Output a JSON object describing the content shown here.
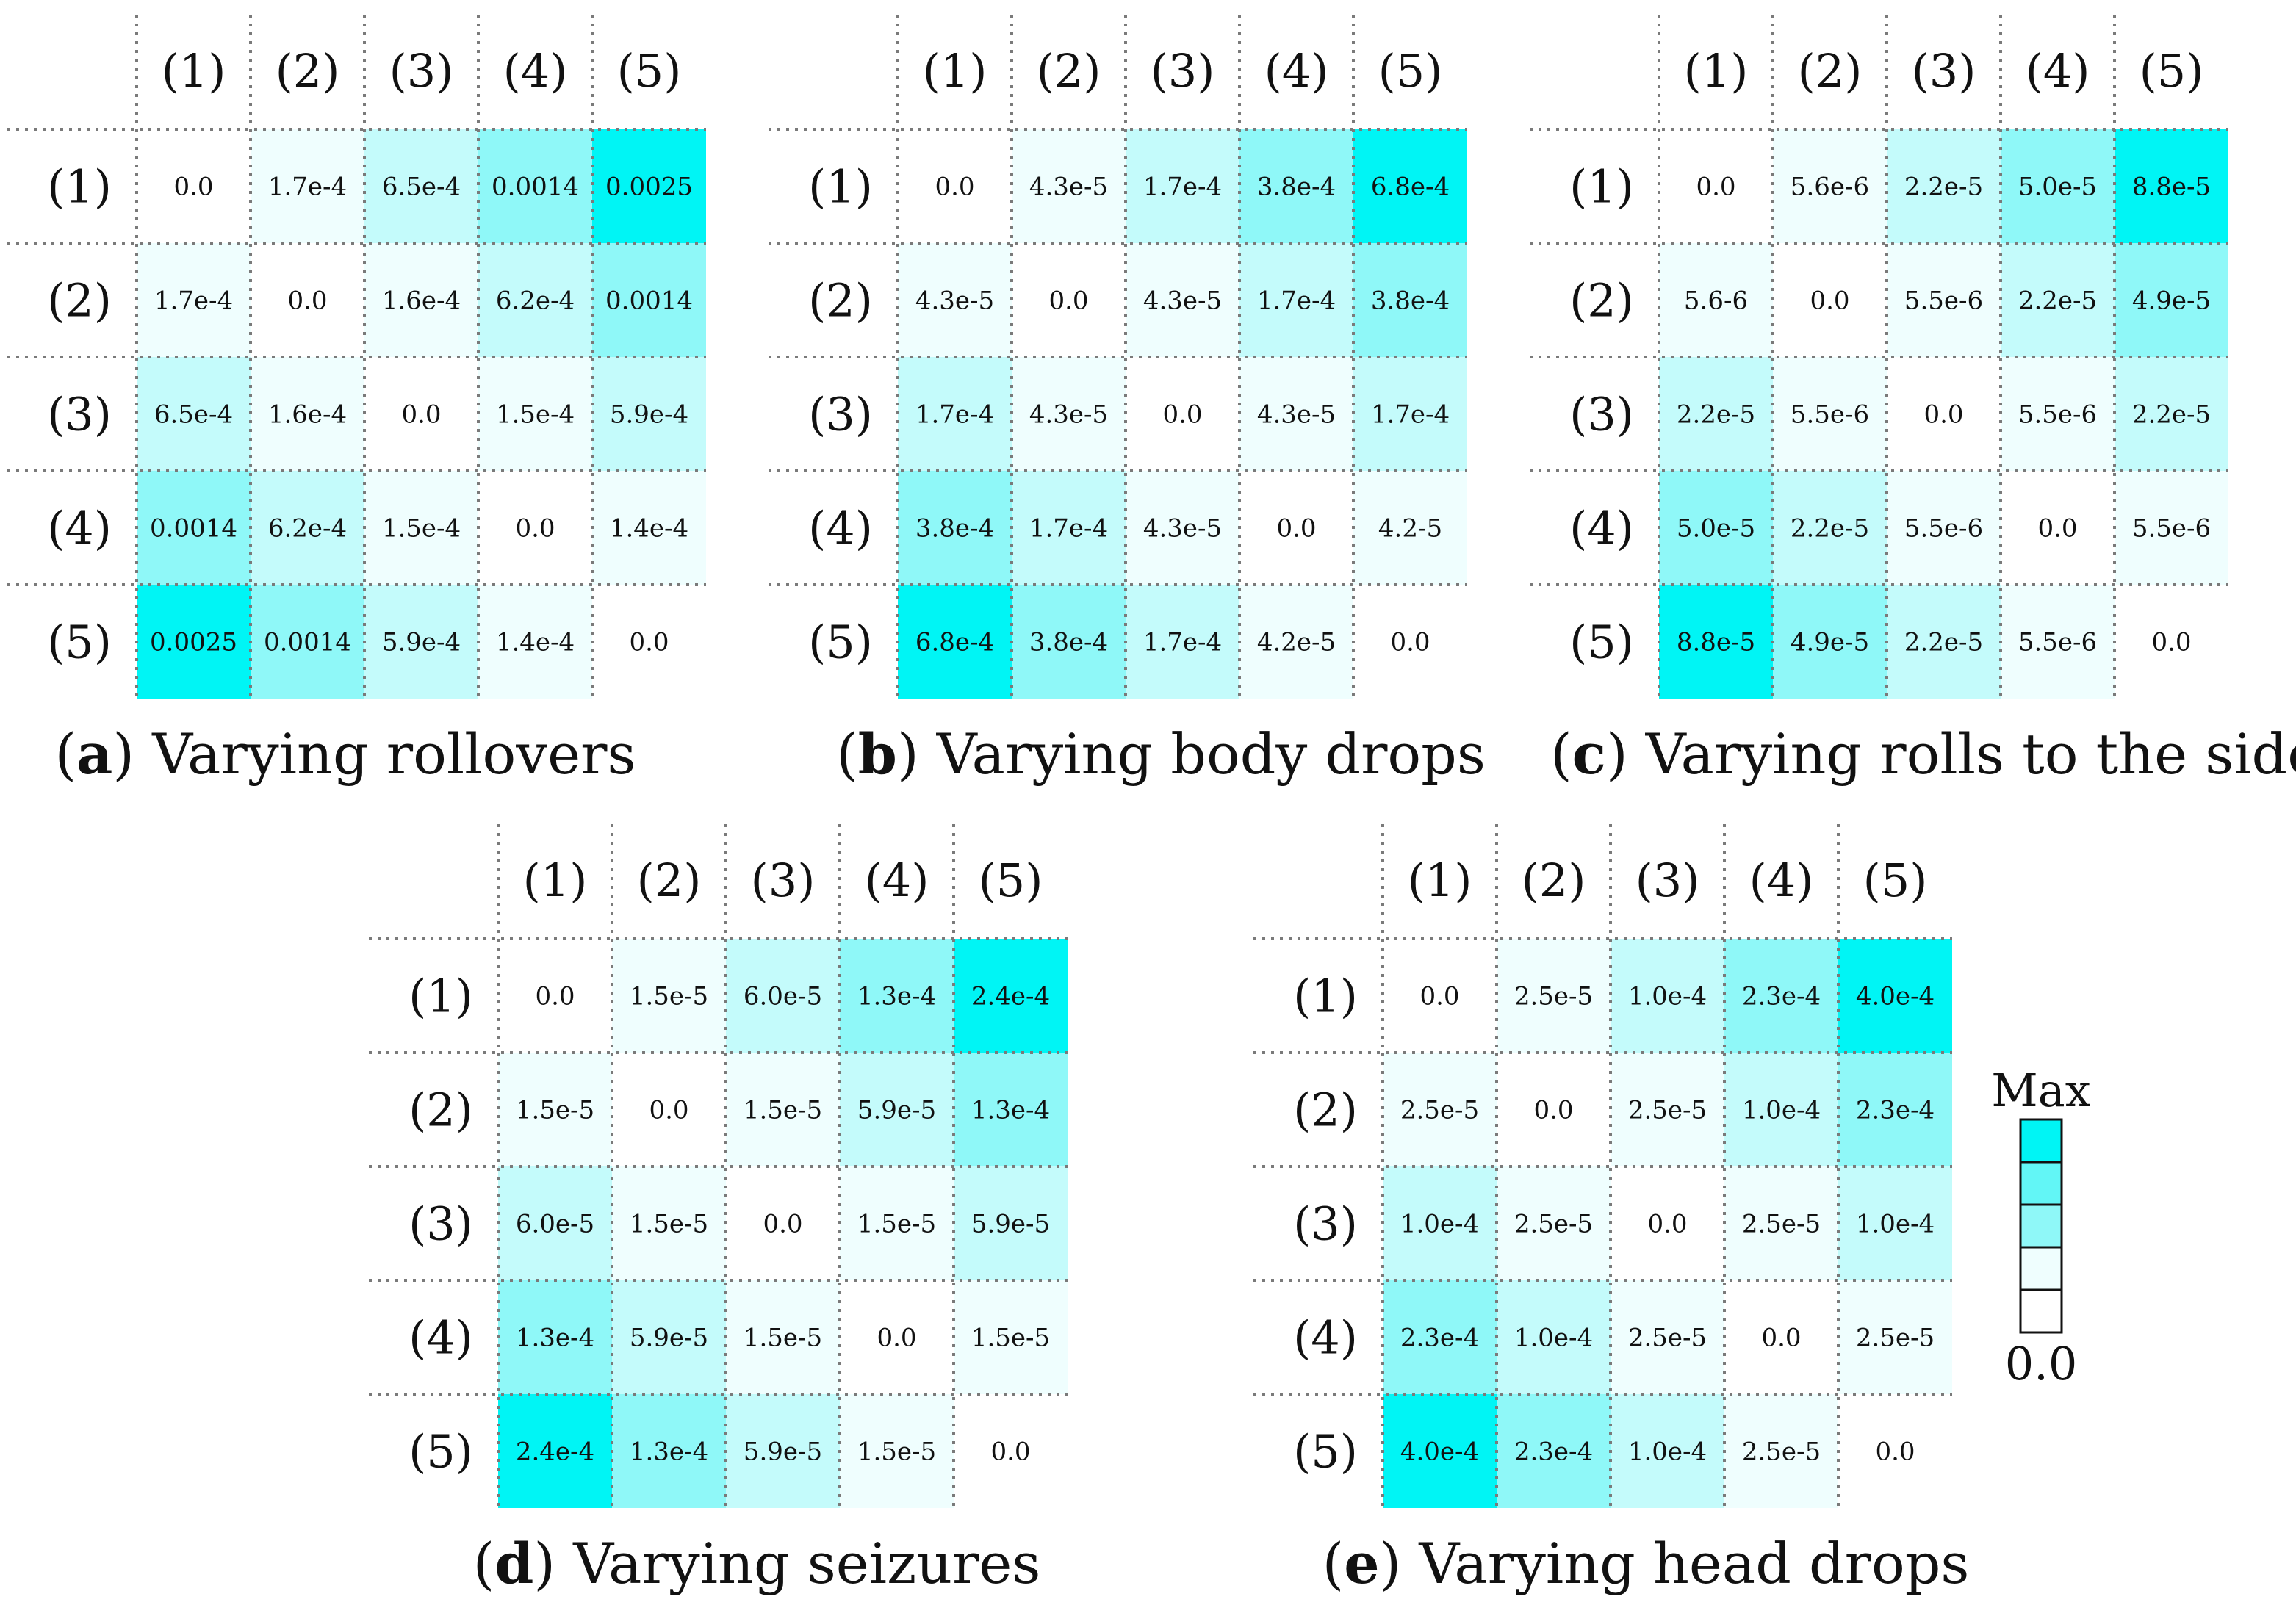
{
  "row_labels": [
    "(1)",
    "(2)",
    "(3)",
    "(4)",
    "(5)"
  ],
  "col_labels": [
    "(1)",
    "(2)",
    "(3)",
    "(4)",
    "(5)"
  ],
  "legend": {
    "max_label": "Max",
    "min_label": "0.0",
    "levels": 5,
    "max_color": "#00f5f5"
  },
  "chart_data": [
    {
      "type": "heatmap",
      "id": "a",
      "caption_letter": "a",
      "title": "Varying rollovers",
      "rows": [
        "(1)",
        "(2)",
        "(3)",
        "(4)",
        "(5)"
      ],
      "cols": [
        "(1)",
        "(2)",
        "(3)",
        "(4)",
        "(5)"
      ],
      "values": [
        [
          0.0,
          0.00017,
          0.00065,
          0.0014,
          0.0025
        ],
        [
          0.00017,
          0.0,
          0.00016,
          0.00062,
          0.0014
        ],
        [
          0.00065,
          0.00016,
          0.0,
          0.00015,
          0.00059
        ],
        [
          0.0014,
          0.00062,
          0.00015,
          0.0,
          0.00014
        ],
        [
          0.0025,
          0.0014,
          0.00059,
          0.00014,
          0.0
        ]
      ],
      "labels": [
        [
          "0.0",
          "1.7e-4",
          "6.5e-4",
          "0.0014",
          "0.0025"
        ],
        [
          "1.7e-4",
          "0.0",
          "1.6e-4",
          "6.2e-4",
          "0.0014"
        ],
        [
          "6.5e-4",
          "1.6e-4",
          "0.0",
          "1.5e-4",
          "5.9e-4"
        ],
        [
          "0.0014",
          "6.2e-4",
          "1.5e-4",
          "0.0",
          "1.4e-4"
        ],
        [
          "0.0025",
          "0.0014",
          "5.9e-4",
          "1.4e-4",
          "0.0"
        ]
      ]
    },
    {
      "type": "heatmap",
      "id": "b",
      "caption_letter": "b",
      "title": "Varying body drops",
      "rows": [
        "(1)",
        "(2)",
        "(3)",
        "(4)",
        "(5)"
      ],
      "cols": [
        "(1)",
        "(2)",
        "(3)",
        "(4)",
        "(5)"
      ],
      "values": [
        [
          0.0,
          4.3e-05,
          0.00017,
          0.00038,
          0.00068
        ],
        [
          4.3e-05,
          0.0,
          4.3e-05,
          0.00017,
          0.00038
        ],
        [
          0.00017,
          4.3e-05,
          0.0,
          4.3e-05,
          0.00017
        ],
        [
          0.00038,
          0.00017,
          4.3e-05,
          0.0,
          4.2e-05
        ],
        [
          0.00068,
          0.00038,
          0.00017,
          4.2e-05,
          0.0
        ]
      ],
      "labels": [
        [
          "0.0",
          "4.3e-5",
          "1.7e-4",
          "3.8e-4",
          "6.8e-4"
        ],
        [
          "4.3e-5",
          "0.0",
          "4.3e-5",
          "1.7e-4",
          "3.8e-4"
        ],
        [
          "1.7e-4",
          "4.3e-5",
          "0.0",
          "4.3e-5",
          "1.7e-4"
        ],
        [
          "3.8e-4",
          "1.7e-4",
          "4.3e-5",
          "0.0",
          "4.2-5"
        ],
        [
          "6.8e-4",
          "3.8e-4",
          "1.7e-4",
          "4.2e-5",
          "0.0"
        ]
      ]
    },
    {
      "type": "heatmap",
      "id": "c",
      "caption_letter": "c",
      "title": "Varying rolls to the side",
      "rows": [
        "(1)",
        "(2)",
        "(3)",
        "(4)",
        "(5)"
      ],
      "cols": [
        "(1)",
        "(2)",
        "(3)",
        "(4)",
        "(5)"
      ],
      "values": [
        [
          0.0,
          5.6e-06,
          2.2e-05,
          5e-05,
          8.8e-05
        ],
        [
          5.6e-06,
          0.0,
          5.5e-06,
          2.2e-05,
          4.9e-05
        ],
        [
          2.2e-05,
          5.5e-06,
          0.0,
          5.5e-06,
          2.2e-05
        ],
        [
          5e-05,
          2.2e-05,
          5.5e-06,
          0.0,
          5.5e-06
        ],
        [
          8.8e-05,
          4.9e-05,
          2.2e-05,
          5.5e-06,
          0.0
        ]
      ],
      "labels": [
        [
          "0.0",
          "5.6e-6",
          "2.2e-5",
          "5.0e-5",
          "8.8e-5"
        ],
        [
          "5.6-6",
          "0.0",
          "5.5e-6",
          "2.2e-5",
          "4.9e-5"
        ],
        [
          "2.2e-5",
          "5.5e-6",
          "0.0",
          "5.5e-6",
          "2.2e-5"
        ],
        [
          "5.0e-5",
          "2.2e-5",
          "5.5e-6",
          "0.0",
          "5.5e-6"
        ],
        [
          "8.8e-5",
          "4.9e-5",
          "2.2e-5",
          "5.5e-6",
          "0.0"
        ]
      ]
    },
    {
      "type": "heatmap",
      "id": "d",
      "caption_letter": "d",
      "title": "Varying seizures",
      "rows": [
        "(1)",
        "(2)",
        "(3)",
        "(4)",
        "(5)"
      ],
      "cols": [
        "(1)",
        "(2)",
        "(3)",
        "(4)",
        "(5)"
      ],
      "values": [
        [
          0.0,
          1.5e-05,
          6e-05,
          0.00013,
          0.00024
        ],
        [
          1.5e-05,
          0.0,
          1.5e-05,
          5.9e-05,
          0.00013
        ],
        [
          6e-05,
          1.5e-05,
          0.0,
          1.5e-05,
          5.9e-05
        ],
        [
          0.00013,
          5.9e-05,
          1.5e-05,
          0.0,
          1.5e-05
        ],
        [
          0.00024,
          0.00013,
          5.9e-05,
          1.5e-05,
          0.0
        ]
      ],
      "labels": [
        [
          "0.0",
          "1.5e-5",
          "6.0e-5",
          "1.3e-4",
          "2.4e-4"
        ],
        [
          "1.5e-5",
          "0.0",
          "1.5e-5",
          "5.9e-5",
          "1.3e-4"
        ],
        [
          "6.0e-5",
          "1.5e-5",
          "0.0",
          "1.5e-5",
          "5.9e-5"
        ],
        [
          "1.3e-4",
          "5.9e-5",
          "1.5e-5",
          "0.0",
          "1.5e-5"
        ],
        [
          "2.4e-4",
          "1.3e-4",
          "5.9e-5",
          "1.5e-5",
          "0.0"
        ]
      ]
    },
    {
      "type": "heatmap",
      "id": "e",
      "caption_letter": "e",
      "title": "Varying head drops",
      "rows": [
        "(1)",
        "(2)",
        "(3)",
        "(4)",
        "(5)"
      ],
      "cols": [
        "(1)",
        "(2)",
        "(3)",
        "(4)",
        "(5)"
      ],
      "values": [
        [
          0.0,
          2.5e-05,
          0.0001,
          0.00023,
          0.0004
        ],
        [
          2.5e-05,
          0.0,
          2.5e-05,
          0.0001,
          0.00023
        ],
        [
          0.0001,
          2.5e-05,
          0.0,
          2.5e-05,
          0.0001
        ],
        [
          0.00023,
          0.0001,
          2.5e-05,
          0.0,
          2.5e-05
        ],
        [
          0.0004,
          0.00023,
          0.0001,
          2.5e-05,
          0.0
        ]
      ],
      "labels": [
        [
          "0.0",
          "2.5e-5",
          "1.0e-4",
          "2.3e-4",
          "4.0e-4"
        ],
        [
          "2.5e-5",
          "0.0",
          "2.5e-5",
          "1.0e-4",
          "2.3e-4"
        ],
        [
          "1.0e-4",
          "2.5e-5",
          "0.0",
          "2.5e-5",
          "1.0e-4"
        ],
        [
          "2.3e-4",
          "1.0e-4",
          "2.5e-5",
          "0.0",
          "2.5e-5"
        ],
        [
          "4.0e-4",
          "2.3e-4",
          "1.0e-4",
          "2.5e-5",
          "0.0"
        ]
      ]
    }
  ]
}
